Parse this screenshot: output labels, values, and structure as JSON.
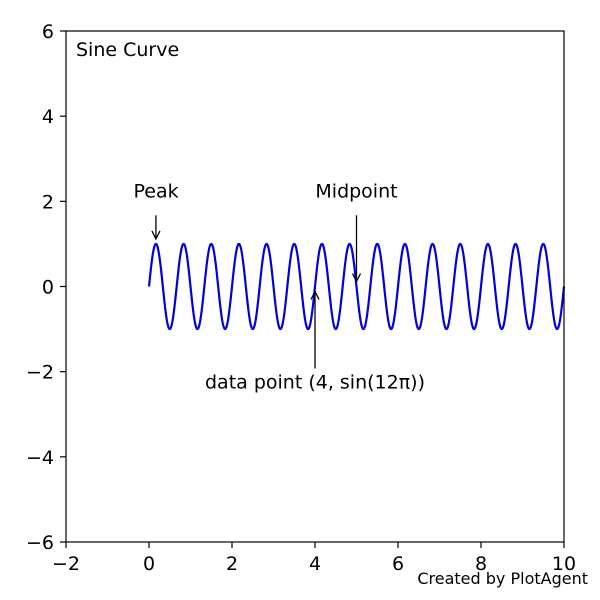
{
  "chart_data": {
    "type": "line",
    "title": "Sine Curve",
    "xlabel": "",
    "ylabel": "",
    "xlim": [
      -2,
      10
    ],
    "ylim": [
      -6,
      6
    ],
    "x_ticks": [
      -2,
      0,
      2,
      4,
      6,
      8,
      10
    ],
    "y_ticks": [
      -6,
      -4,
      -2,
      0,
      2,
      4,
      6
    ],
    "x_tick_labels": [
      "−2",
      "0",
      "2",
      "4",
      "6",
      "8",
      "10"
    ],
    "y_tick_labels": [
      "−6",
      "−4",
      "−2",
      "0",
      "2",
      "4",
      "6"
    ],
    "grid": false,
    "series": [
      {
        "function": "sin(3*pi*x)",
        "x_range": [
          0,
          10
        ],
        "color": "#0000dd"
      }
    ],
    "annotations": [
      {
        "text": "Peak",
        "point": [
          0.167,
          1.0
        ],
        "text_pos": [
          0.17,
          2.0
        ]
      },
      {
        "text": "Midpoint",
        "point": [
          5.0,
          0.0
        ],
        "text_pos": [
          5.0,
          2.0
        ]
      },
      {
        "text": "data point (4, sin(12π))",
        "point": [
          4.0,
          0.0
        ],
        "text_pos": [
          4.0,
          -2.3
        ]
      }
    ]
  },
  "credit": "Created by PlotAgent"
}
